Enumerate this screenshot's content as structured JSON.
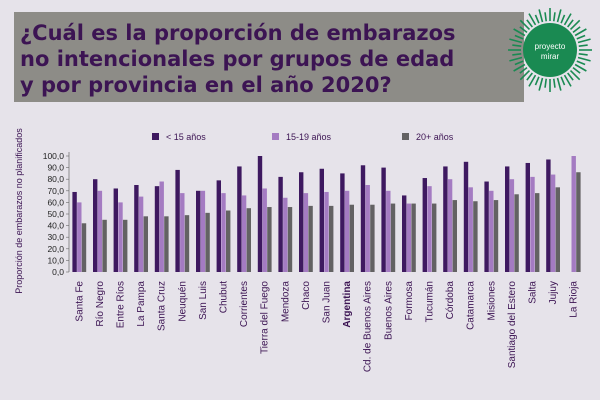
{
  "title": {
    "line1": "¿Cuál es la proporción de embarazos",
    "line2": "no intencionales por grupos de edad",
    "line3": "y por provincia en el año 2020?"
  },
  "logo": {
    "line1": "proyecto",
    "line2": "mirar"
  },
  "colors": {
    "title": "#3c1453",
    "s1": "#3e1960",
    "s2": "#a47bc2",
    "s3": "#636263",
    "bg": "#e6e3ea",
    "logo": "#1a8a52"
  },
  "chart_data": {
    "type": "bar",
    "ylabel": "Proporción de embarazos no planificados",
    "ylim": [
      0,
      100
    ],
    "yticks": [
      "0,0",
      "10,0",
      "20,0",
      "30,0",
      "40,0",
      "50,0",
      "60,0",
      "70,0",
      "80,0",
      "90,0",
      "100,0"
    ],
    "legend_position": "top",
    "categories": [
      "Santa Fe",
      "Río Negro",
      "Entre Ríos",
      "La Pampa",
      "Santa Cruz",
      "Neuquén",
      "San Luis",
      "Chubut",
      "Corrientes",
      "Tierra del Fuego",
      "Mendoza",
      "Chaco",
      "San Juan",
      "Argentina",
      "Cd. de Buenos Aires",
      "Buenos Aires",
      "Formosa",
      "Tucumán",
      "Córdoba",
      "Catamarca",
      "Misiones",
      "Santiago del Estero",
      "Salta",
      "Jujuy",
      "La Rioja"
    ],
    "highlight_category": "Argentina",
    "series": [
      {
        "name": "< 15 años",
        "values": [
          69,
          80,
          72,
          75,
          74,
          88,
          70,
          79,
          91,
          100,
          82,
          86,
          89,
          85,
          92,
          90,
          66,
          81,
          91,
          95,
          78,
          91,
          94,
          97,
          0
        ]
      },
      {
        "name": "15-19 años",
        "values": [
          60,
          70,
          60,
          65,
          78,
          68,
          70,
          68,
          66,
          72,
          64,
          68,
          69,
          70,
          75,
          70,
          59,
          74,
          80,
          73,
          70,
          80,
          82,
          84,
          100
        ]
      },
      {
        "name": "20+ años",
        "values": [
          42,
          45,
          45,
          48,
          48,
          49,
          51,
          53,
          55,
          56,
          56,
          57,
          57,
          58,
          58,
          59,
          59,
          59,
          62,
          61,
          62,
          67,
          68,
          73,
          86
        ]
      }
    ]
  }
}
